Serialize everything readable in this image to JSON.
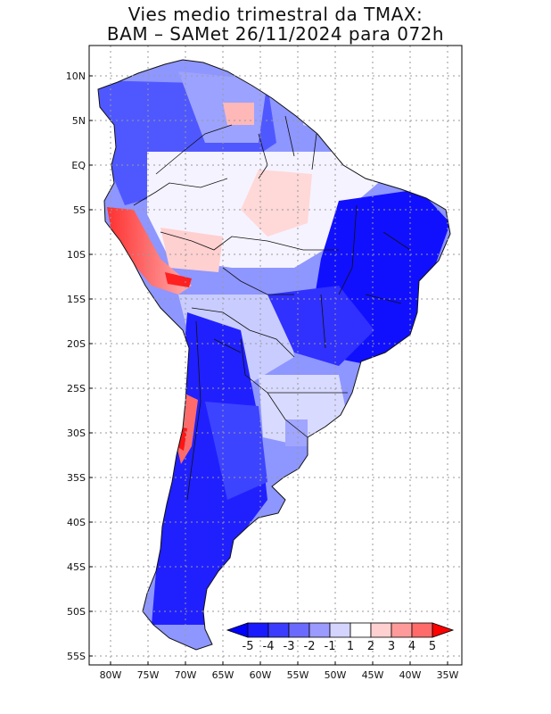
{
  "title": {
    "line1": "Vies medio trimestral da TMAX:",
    "line2": "BAM – SAMet 26/11/2024  para 072h"
  },
  "map": {
    "lat_labels": [
      "10N",
      "5N",
      "EQ",
      "5S",
      "10S",
      "15S",
      "20S",
      "25S",
      "30S",
      "35S",
      "40S",
      "45S",
      "50S",
      "55S"
    ],
    "lon_labels": [
      "80W",
      "75W",
      "70W",
      "65W",
      "60W",
      "55W",
      "50W",
      "45W",
      "40W",
      "35W"
    ],
    "grid": "dotted"
  },
  "colorbar": {
    "labels": [
      "-5",
      "-4",
      "-3",
      "-2",
      "-1",
      "1",
      "2",
      "3",
      "4",
      "5"
    ],
    "colors": [
      "#1a1aff",
      "#3c3cff",
      "#6a6aff",
      "#9a9aff",
      "#d4d4ff",
      "#ffffff",
      "#ffd0d0",
      "#ff9a9a",
      "#ff6a6a",
      "#ff2020"
    ],
    "low_arrow_color": "#0000ff",
    "high_arrow_color": "#ff0000"
  }
}
